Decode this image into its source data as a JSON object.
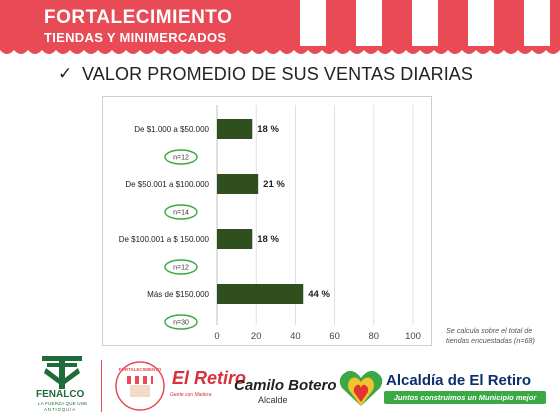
{
  "header": {
    "title": "FORTALECIMIENTO",
    "subtitle": "TIENDAS Y MINIMERCADOS"
  },
  "slide_title": "VALOR PROMEDIO DE SUS VENTAS DIARIAS",
  "check_glyph": "✓",
  "chart_data": {
    "type": "bar",
    "orientation": "horizontal",
    "categories": [
      "De $1.000 a $50.000",
      "De $50.001 a $100.000",
      "De $100.001 a $ 150.000",
      "Más de $150.000"
    ],
    "values": [
      18,
      21,
      18,
      44
    ],
    "value_labels": [
      "18 %",
      "21 %",
      "18 %",
      "44 %"
    ],
    "sample_labels": [
      "n=12",
      "n=14",
      "n=12",
      "n=30"
    ],
    "xlim": [
      0,
      100
    ],
    "xticks": [
      "0",
      "20",
      "40",
      "60",
      "80",
      "100"
    ],
    "grid": true,
    "bar_color": "#2f4f1f",
    "badge_color": "#3aa845"
  },
  "footnote": "Se calcula sobre el total de tiendas encuestadas (n=68)",
  "footer": {
    "fenalco": "FENALCO",
    "fenalco_line1": "LA FUERZA QUE UNE",
    "fenalco_line2": "ANTIOQUIA",
    "badge_text": "FORTALECIMIENTO",
    "retiro": "El Retiro",
    "retiro_tag": "Gente con Madera",
    "camilo": "Camilo Botero",
    "camilo_sub": "Alcalde",
    "alcaldia": "Alcaldía de El Retiro",
    "alcaldia_tag": "Juntos construimos un Municipio mejor"
  },
  "colors": {
    "header": "#e84b55",
    "accent_green": "#3aa845",
    "navy": "#0b2f6d"
  }
}
